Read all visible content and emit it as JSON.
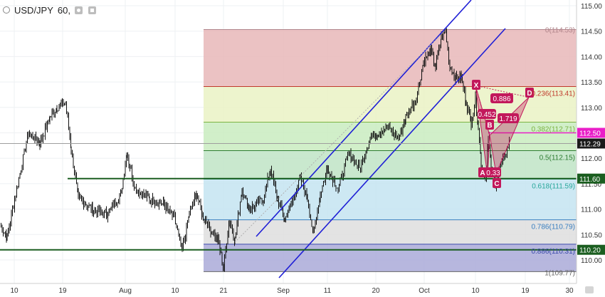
{
  "header": {
    "symbol": "USD/JPY",
    "interval": "60,"
  },
  "chart_data": {
    "type": "candlestick",
    "symbol": "USD/JPY",
    "interval": "60",
    "ylim": [
      109.6,
      115.1
    ],
    "y_ticks": [
      110.0,
      110.5,
      111.0,
      111.5,
      112.0,
      112.5,
      113.0,
      113.5,
      114.0,
      114.5,
      115.0
    ],
    "y_tick_labels": [
      "110.00",
      "110.50",
      "111.00",
      "111.50",
      "112.00",
      "112.50",
      "113.00",
      "113.50",
      "114.00",
      "114.50",
      "115.00"
    ],
    "x_tick_labels": [
      "10",
      "19",
      "Aug",
      "10",
      "21",
      "Sep",
      "11",
      "20",
      "Oct",
      "10",
      "19",
      "30"
    ],
    "last_price": 112.29,
    "last_price_label": "112.29",
    "horizontal_levels": [
      {
        "price": 112.5,
        "label": "112.50",
        "color": "#e91ec8"
      },
      {
        "price": 111.6,
        "label": "111.60",
        "color": "#1b5e20"
      },
      {
        "price": 110.2,
        "label": "110.20",
        "color": "#1b5e20"
      }
    ],
    "fibonacci": {
      "levels": [
        {
          "ratio": 0,
          "price": 114.53,
          "label": "0(114.53)",
          "color": "#b0848a",
          "fill": "#e8b7b9"
        },
        {
          "ratio": 0.236,
          "price": 113.41,
          "label": "0.236(113.41)",
          "color": "#c0392b",
          "fill": "#eaf2c4"
        },
        {
          "ratio": 0.382,
          "price": 112.71,
          "label": "0.382(112.71)",
          "color": "#7cb342",
          "fill": "#c9ecc0"
        },
        {
          "ratio": 0.5,
          "price": 112.15,
          "label": "0.5(112.15)",
          "color": "#2e7d32",
          "fill": "#bfe4c6"
        },
        {
          "ratio": 0.618,
          "price": 111.59,
          "label": "0.618(111.59)",
          "color": "#26a69a",
          "fill": "#c4e4f1"
        },
        {
          "ratio": 0.786,
          "price": 110.79,
          "label": "0.786(110.79)",
          "color": "#3a7fc0",
          "fill": "#dedede"
        },
        {
          "ratio": 0.886,
          "price": 110.31,
          "label": "0.886(110.31)",
          "color": "#3949ab",
          "fill": "#aaaad8"
        },
        {
          "ratio": 1,
          "price": 109.77,
          "label": "1(109.77)",
          "color": "#666666",
          "fill": null
        }
      ]
    },
    "pattern": {
      "points": [
        {
          "label": "X",
          "price": 113.43
        },
        {
          "label": "A",
          "price": 111.65
        },
        {
          "label": "B",
          "price": 112.45
        },
        {
          "label": "C",
          "price": 111.7
        },
        {
          "label": "D",
          "price": 113.2
        }
      ],
      "ratios": [
        "0.886",
        "0.452",
        "1.719",
        "0.33"
      ],
      "color": "#c2185b"
    },
    "channel_color": "#1f1fd6"
  }
}
